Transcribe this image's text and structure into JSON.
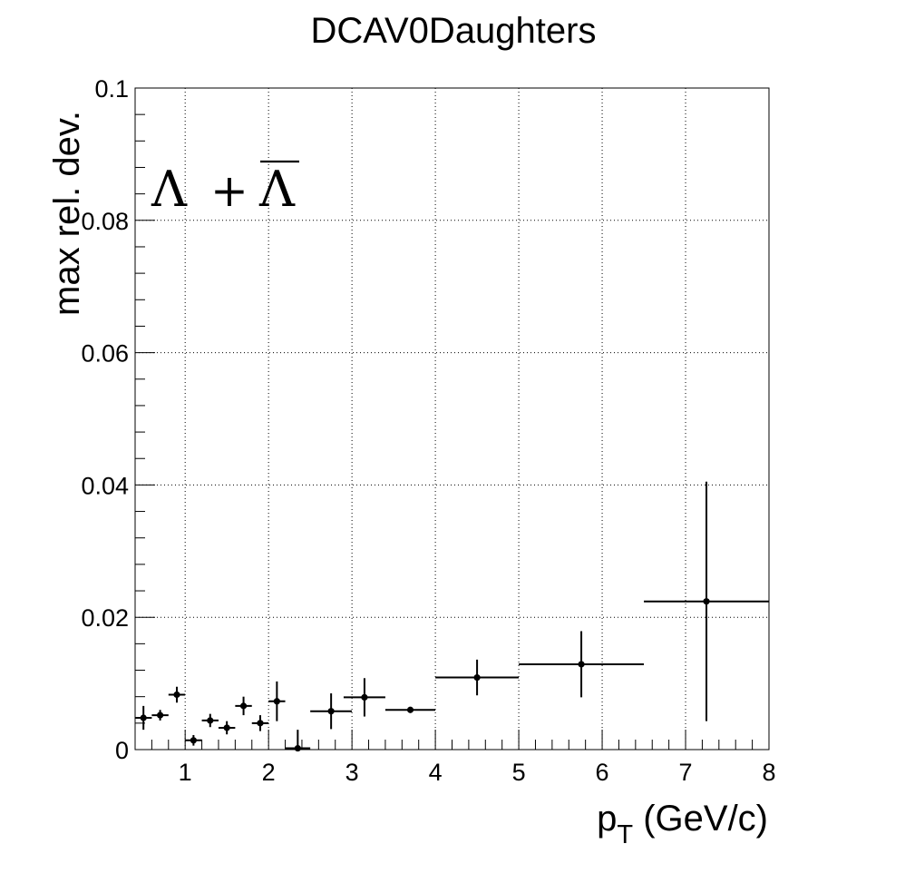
{
  "chart_data": {
    "type": "scatter",
    "title": "DCAV0Daughters",
    "xlabel_main": "p",
    "xlabel_sub": "T",
    "xlabel_unit": " (GeV/c)",
    "ylabel": "max rel. dev.",
    "annotation": {
      "lambda": "Λ",
      "plus": "+",
      "antilambda": "Λ"
    },
    "xlim": [
      0.4,
      8
    ],
    "ylim": [
      0,
      0.1
    ],
    "grid": true,
    "x_ticks": [
      1,
      2,
      3,
      4,
      5,
      6,
      7,
      8
    ],
    "x_tick_labels": [
      "1",
      "2",
      "3",
      "4",
      "5",
      "6",
      "7",
      "8"
    ],
    "y_ticks": [
      0,
      0.02,
      0.04,
      0.06,
      0.08,
      0.1
    ],
    "y_tick_labels": [
      "0",
      "0.02",
      "0.04",
      "0.06",
      "0.08",
      "0.1"
    ],
    "points": [
      {
        "x": 0.5,
        "xlo": 0.4,
        "xhi": 0.6,
        "y": 0.0048,
        "yerr": 0.0018
      },
      {
        "x": 0.7,
        "xlo": 0.6,
        "xhi": 0.8,
        "y": 0.0052,
        "yerr": 0.0008
      },
      {
        "x": 0.9,
        "xlo": 0.8,
        "xhi": 1.0,
        "y": 0.0083,
        "yerr": 0.0012
      },
      {
        "x": 1.1,
        "xlo": 1.0,
        "xhi": 1.2,
        "y": 0.0014,
        "yerr": 0.0008
      },
      {
        "x": 1.3,
        "xlo": 1.2,
        "xhi": 1.4,
        "y": 0.0044,
        "yerr": 0.001
      },
      {
        "x": 1.5,
        "xlo": 1.4,
        "xhi": 1.6,
        "y": 0.0033,
        "yerr": 0.001
      },
      {
        "x": 1.7,
        "xlo": 1.6,
        "xhi": 1.8,
        "y": 0.0066,
        "yerr": 0.0014
      },
      {
        "x": 1.9,
        "xlo": 1.8,
        "xhi": 2.0,
        "y": 0.004,
        "yerr": 0.0012
      },
      {
        "x": 2.1,
        "xlo": 2.0,
        "xhi": 2.2,
        "y": 0.0073,
        "yerr": 0.003
      },
      {
        "x": 2.35,
        "xlo": 2.2,
        "xhi": 2.5,
        "y": 0.0002,
        "yerr": 0.0028
      },
      {
        "x": 2.75,
        "xlo": 2.5,
        "xhi": 3.0,
        "y": 0.0058,
        "yerr": 0.0027
      },
      {
        "x": 3.15,
        "xlo": 2.9,
        "xhi": 3.4,
        "y": 0.0079,
        "yerr": 0.0029
      },
      {
        "x": 3.7,
        "xlo": 3.4,
        "xhi": 4.0,
        "y": 0.006,
        "yerr": 0.0004
      },
      {
        "x": 4.5,
        "xlo": 4.0,
        "xhi": 5.0,
        "y": 0.0109,
        "yerr": 0.0027
      },
      {
        "x": 5.75,
        "xlo": 5.0,
        "xhi": 6.5,
        "y": 0.0129,
        "yerr": 0.005
      },
      {
        "x": 7.25,
        "xlo": 6.5,
        "xhi": 8.0,
        "y": 0.0224,
        "yerr": 0.0181
      }
    ],
    "colors": {
      "marker": "#000000",
      "axis": "#000000",
      "grid": "#000000"
    }
  }
}
